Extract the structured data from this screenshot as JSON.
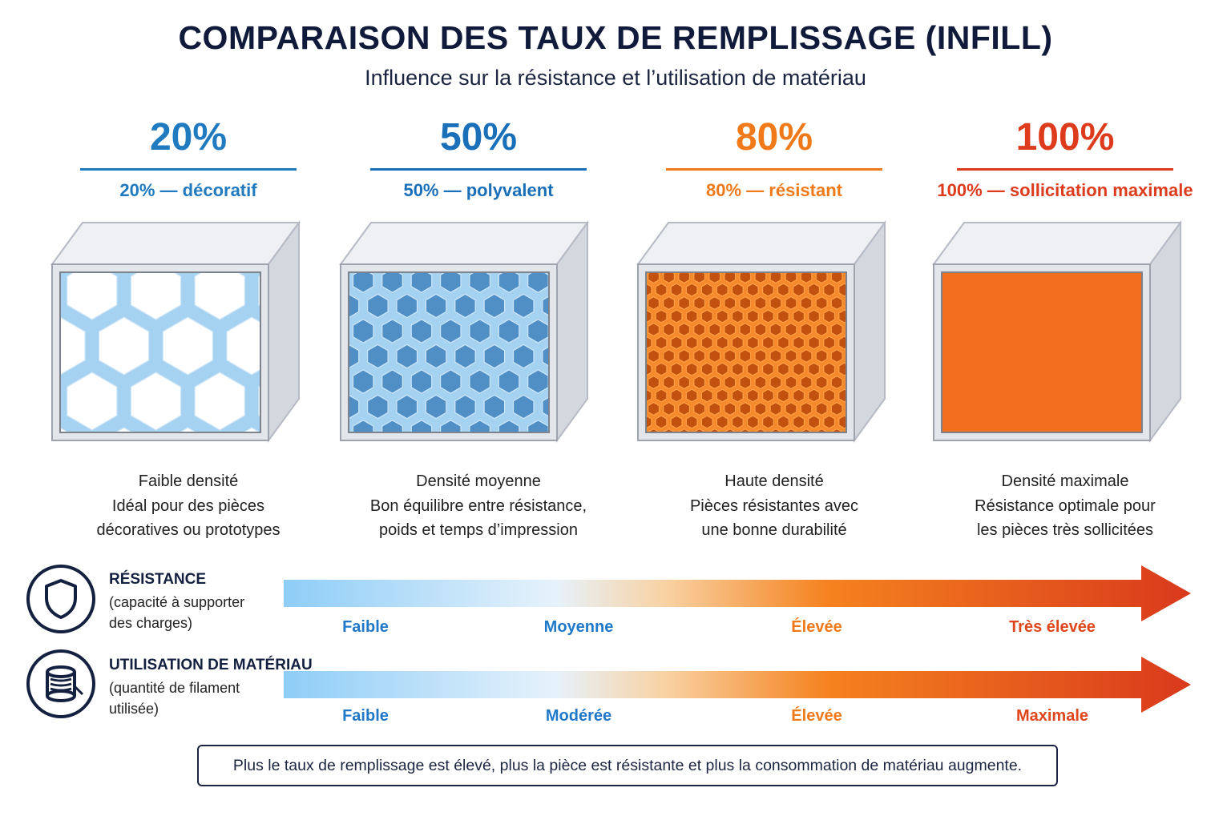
{
  "header": {
    "title": "COMPARAISON DES TAUX DE REMPLISSAGE (INFILL)",
    "subtitle": "Influence sur la résistance et l’utilisation de matériau"
  },
  "columns": [
    {
      "percent": "20%",
      "label": "20% — décoratif",
      "color": "#1f7ac0",
      "infill_level": 0.2,
      "desc": [
        "Faible densité",
        "Idéal pour des pièces",
        "décoratives ou prototypes"
      ]
    },
    {
      "percent": "50%",
      "label": "50% — polyvalent",
      "color": "#1a6fb9",
      "infill_level": 0.5,
      "desc": [
        "Densité moyenne",
        "Bon équilibre entre résistance,",
        "poids et temps d’impression"
      ]
    },
    {
      "percent": "80%",
      "label": "80% — résistant",
      "color": "#f07a1a",
      "infill_level": 0.8,
      "desc": [
        "Haute densité",
        "Pièces résistantes avec",
        "une bonne durabilité"
      ]
    },
    {
      "percent": "100%",
      "label": "100% — sollicitation maximale",
      "color": "#dd3b1c",
      "infill_level": 1.0,
      "desc": [
        "Densité maximale",
        "Résistance optimale pour",
        "les pièces très sollicitées"
      ]
    }
  ],
  "metrics": [
    {
      "icon": "shield-icon",
      "title": "RÉSISTANCE",
      "sub": [
        "(capacité à supporter",
        "des charges)"
      ],
      "scale": [
        "Faible",
        "Moyenne",
        "Élevée",
        "Très élevée"
      ]
    },
    {
      "icon": "filament-spool-icon",
      "title": "UTILISATION DE MATÉRIAU",
      "sub": [
        "(quantité de filament",
        "utilisée)"
      ],
      "scale": [
        "Faible",
        "Modérée",
        "Élevée",
        "Maximale"
      ]
    }
  ],
  "scale_colors": [
    "#1f78c8",
    "#1f78c8",
    "#f07a1a",
    "#e0461c"
  ],
  "note": "Plus le taux de remplissage est élevé, plus la pièce est résistante et plus la consommation de matériau augmente."
}
